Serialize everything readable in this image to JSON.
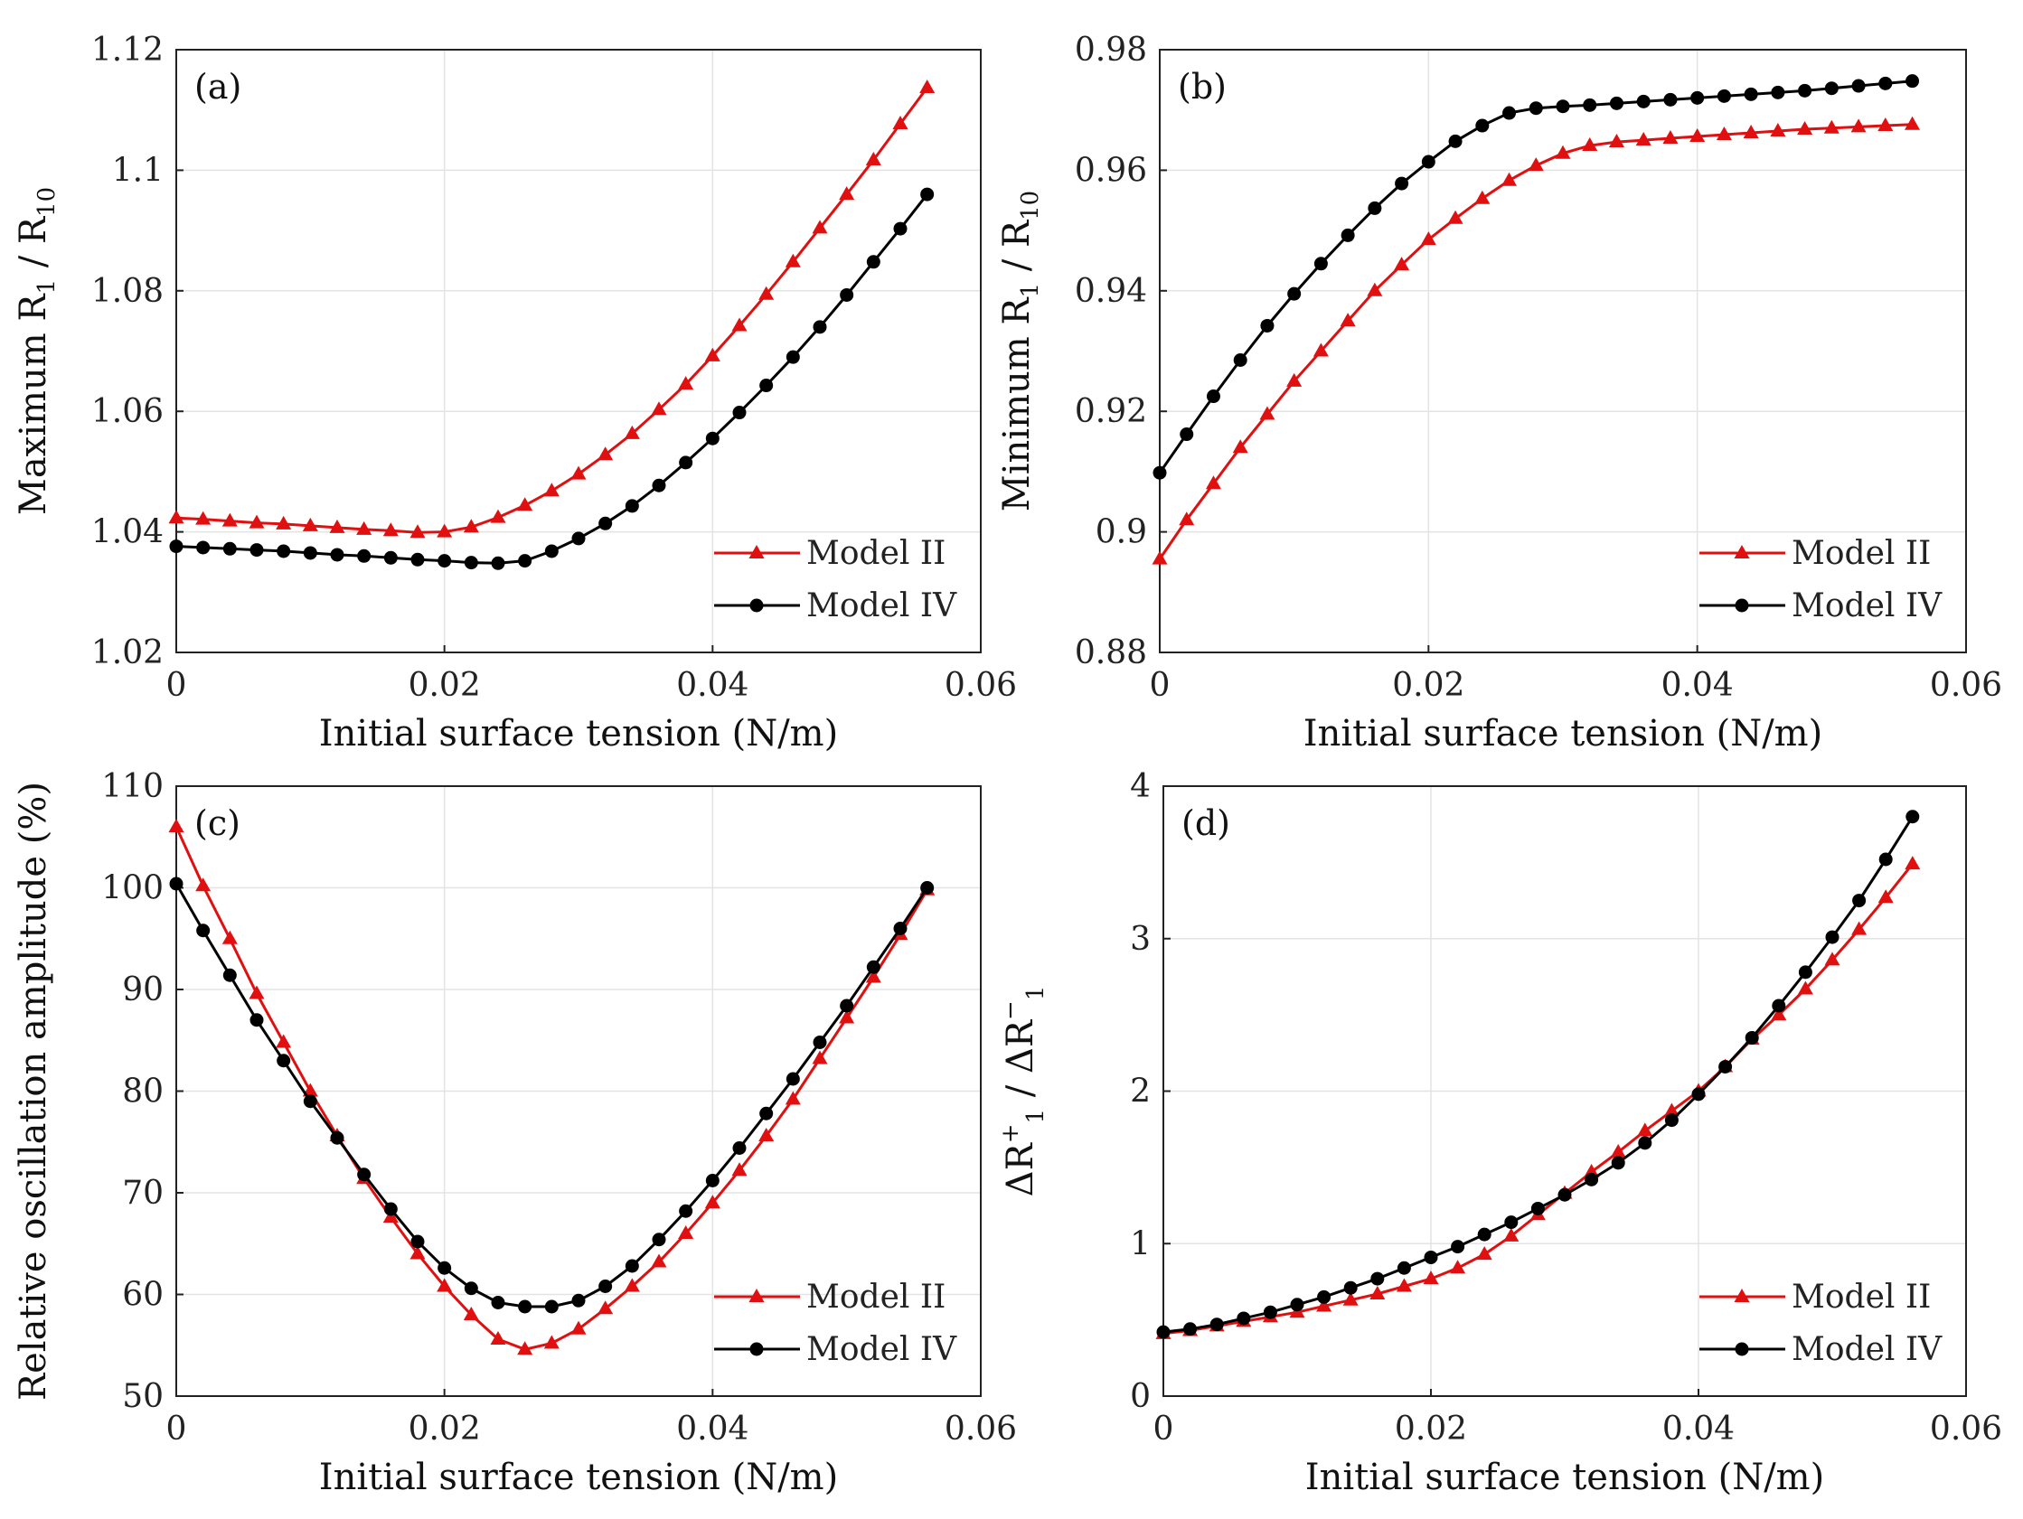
{
  "chart_data": [
    {
      "id": "a",
      "type": "line",
      "panel_label": "(a)",
      "xlabel": "Initial surface tension (N/m)",
      "ylabel_main": "Maximum R",
      "ylabel_sub1": "1",
      "ylabel_mid": " / R",
      "ylabel_sub2": "10",
      "xlim": [
        0,
        0.06
      ],
      "ylim": [
        1.02,
        1.12
      ],
      "x_ticks": [
        "0",
        "0.02",
        "0.04",
        "0.06"
      ],
      "y_ticks": [
        "1.02",
        "1.04",
        "1.06",
        "1.08",
        "1.1",
        "1.12"
      ],
      "legend_position": "bottom-right",
      "x": [
        0,
        0.002,
        0.004,
        0.006,
        0.008,
        0.01,
        0.012,
        0.014,
        0.016,
        0.018,
        0.02,
        0.022,
        0.024,
        0.026,
        0.028,
        0.03,
        0.032,
        0.034,
        0.036,
        0.038,
        0.04,
        0.042,
        0.044,
        0.046,
        0.048,
        0.05,
        0.052,
        0.054,
        0.056
      ],
      "series": [
        {
          "name": "Model II",
          "color": "#e01010",
          "marker": "triangle",
          "values": [
            1.0423,
            1.0421,
            1.0418,
            1.0415,
            1.0413,
            1.041,
            1.0407,
            1.0404,
            1.0402,
            1.0399,
            1.04,
            1.0408,
            1.0424,
            1.0444,
            1.0468,
            1.0496,
            1.0528,
            1.0563,
            1.0603,
            1.0645,
            1.0692,
            1.0742,
            1.0794,
            1.0848,
            1.0904,
            1.096,
            1.1017,
            1.1077,
            1.1137
          ]
        },
        {
          "name": "Model IV",
          "color": "#000000",
          "marker": "circle",
          "values": [
            1.0376,
            1.0374,
            1.0372,
            1.037,
            1.0368,
            1.0365,
            1.0362,
            1.036,
            1.0357,
            1.0354,
            1.0352,
            1.0349,
            1.0348,
            1.0352,
            1.0368,
            1.0389,
            1.0414,
            1.0443,
            1.0477,
            1.0515,
            1.0555,
            1.0598,
            1.0643,
            1.069,
            1.074,
            1.0793,
            1.0848,
            1.0903,
            1.096
          ]
        }
      ]
    },
    {
      "id": "b",
      "type": "line",
      "panel_label": "(b)",
      "xlabel": "Initial surface tension (N/m)",
      "ylabel_main": "Minimum R",
      "ylabel_sub1": "1",
      "ylabel_mid": " / R",
      "ylabel_sub2": "10",
      "xlim": [
        0,
        0.06
      ],
      "ylim": [
        0.88,
        0.98
      ],
      "x_ticks": [
        "0",
        "0.02",
        "0.04",
        "0.06"
      ],
      "y_ticks": [
        "0.88",
        "0.9",
        "0.92",
        "0.94",
        "0.96",
        "0.98"
      ],
      "legend_position": "bottom-right",
      "x": [
        0,
        0.002,
        0.004,
        0.006,
        0.008,
        0.01,
        0.012,
        0.014,
        0.016,
        0.018,
        0.02,
        0.022,
        0.024,
        0.026,
        0.028,
        0.03,
        0.032,
        0.034,
        0.036,
        0.038,
        0.04,
        0.042,
        0.044,
        0.046,
        0.048,
        0.05,
        0.052,
        0.054,
        0.056
      ],
      "series": [
        {
          "name": "Model II",
          "color": "#e01010",
          "marker": "triangle",
          "values": [
            0.8955,
            0.902,
            0.908,
            0.914,
            0.9195,
            0.925,
            0.93,
            0.935,
            0.94,
            0.9443,
            0.9485,
            0.952,
            0.9553,
            0.9583,
            0.9608,
            0.9628,
            0.9641,
            0.9647,
            0.965,
            0.9653,
            0.9656,
            0.9659,
            0.9662,
            0.9665,
            0.9668,
            0.967,
            0.9672,
            0.9674,
            0.9676
          ]
        },
        {
          "name": "Model IV",
          "color": "#000000",
          "marker": "circle",
          "values": [
            0.9098,
            0.9162,
            0.9225,
            0.9285,
            0.9342,
            0.9395,
            0.9445,
            0.9492,
            0.9537,
            0.9578,
            0.9614,
            0.9648,
            0.9674,
            0.9695,
            0.9703,
            0.9706,
            0.9708,
            0.9711,
            0.9714,
            0.9717,
            0.972,
            0.9723,
            0.9726,
            0.9729,
            0.9732,
            0.9736,
            0.974,
            0.9744,
            0.9748
          ]
        }
      ]
    },
    {
      "id": "c",
      "type": "line",
      "panel_label": "(c)",
      "xlabel": "Initial surface tension (N/m)",
      "ylabel_main": "Relative oscillation amplitude (%)",
      "xlim": [
        0,
        0.06
      ],
      "ylim": [
        50,
        110
      ],
      "x_ticks": [
        "0",
        "0.02",
        "0.04",
        "0.06"
      ],
      "y_ticks": [
        "50",
        "60",
        "70",
        "80",
        "90",
        "100",
        "110"
      ],
      "legend_position": "bottom-right",
      "x": [
        0,
        0.002,
        0.004,
        0.006,
        0.008,
        0.01,
        0.012,
        0.014,
        0.016,
        0.018,
        0.02,
        0.022,
        0.024,
        0.026,
        0.028,
        0.03,
        0.032,
        0.034,
        0.036,
        0.038,
        0.04,
        0.042,
        0.044,
        0.046,
        0.048,
        0.05,
        0.052,
        0.054,
        0.056
      ],
      "series": [
        {
          "name": "Model II",
          "color": "#e01010",
          "marker": "triangle",
          "values": [
            106.0,
            100.2,
            95.0,
            89.6,
            84.8,
            80.0,
            75.6,
            71.4,
            67.6,
            64.0,
            60.8,
            58.0,
            55.6,
            54.6,
            55.2,
            56.6,
            58.6,
            60.8,
            63.2,
            66.0,
            69.0,
            72.2,
            75.6,
            79.2,
            83.2,
            87.2,
            91.2,
            95.4,
            99.8
          ]
        },
        {
          "name": "Model IV",
          "color": "#000000",
          "marker": "circle",
          "values": [
            100.4,
            95.8,
            91.4,
            87.0,
            83.0,
            79.0,
            75.4,
            71.8,
            68.4,
            65.2,
            62.6,
            60.6,
            59.2,
            58.8,
            58.8,
            59.4,
            60.8,
            62.8,
            65.4,
            68.2,
            71.2,
            74.4,
            77.8,
            81.2,
            84.8,
            88.4,
            92.2,
            96.0,
            100.0
          ]
        }
      ]
    },
    {
      "id": "d",
      "type": "line",
      "panel_label": "(d)",
      "xlabel": "Initial surface tension (N/m)",
      "ylabel_main": "ΔR",
      "ylabel_sub1": "1",
      "ylabel_sup1": "+",
      "ylabel_mid": " / ΔR",
      "ylabel_sub2": "1",
      "ylabel_sup2": "−",
      "xlim": [
        0,
        0.06
      ],
      "ylim": [
        0,
        4
      ],
      "x_ticks": [
        "0",
        "0.02",
        "0.04",
        "0.06"
      ],
      "y_ticks": [
        "0",
        "1",
        "2",
        "3",
        "4"
      ],
      "legend_position": "bottom-right",
      "x": [
        0,
        0.002,
        0.004,
        0.006,
        0.008,
        0.01,
        0.012,
        0.014,
        0.016,
        0.018,
        0.02,
        0.022,
        0.024,
        0.026,
        0.028,
        0.03,
        0.032,
        0.034,
        0.036,
        0.038,
        0.04,
        0.042,
        0.044,
        0.046,
        0.048,
        0.05,
        0.052,
        0.054,
        0.056
      ],
      "series": [
        {
          "name": "Model II",
          "color": "#e01010",
          "marker": "triangle",
          "values": [
            0.41,
            0.43,
            0.46,
            0.49,
            0.52,
            0.55,
            0.59,
            0.63,
            0.67,
            0.72,
            0.77,
            0.84,
            0.93,
            1.05,
            1.19,
            1.33,
            1.47,
            1.6,
            1.74,
            1.87,
            2.0,
            2.16,
            2.34,
            2.5,
            2.67,
            2.86,
            3.06,
            3.27,
            3.49
          ]
        },
        {
          "name": "Model IV",
          "color": "#000000",
          "marker": "circle",
          "values": [
            0.42,
            0.44,
            0.47,
            0.51,
            0.55,
            0.6,
            0.65,
            0.71,
            0.77,
            0.84,
            0.91,
            0.98,
            1.06,
            1.14,
            1.23,
            1.32,
            1.42,
            1.53,
            1.66,
            1.81,
            1.98,
            2.16,
            2.35,
            2.56,
            2.78,
            3.01,
            3.25,
            3.52,
            3.8
          ]
        }
      ]
    }
  ]
}
